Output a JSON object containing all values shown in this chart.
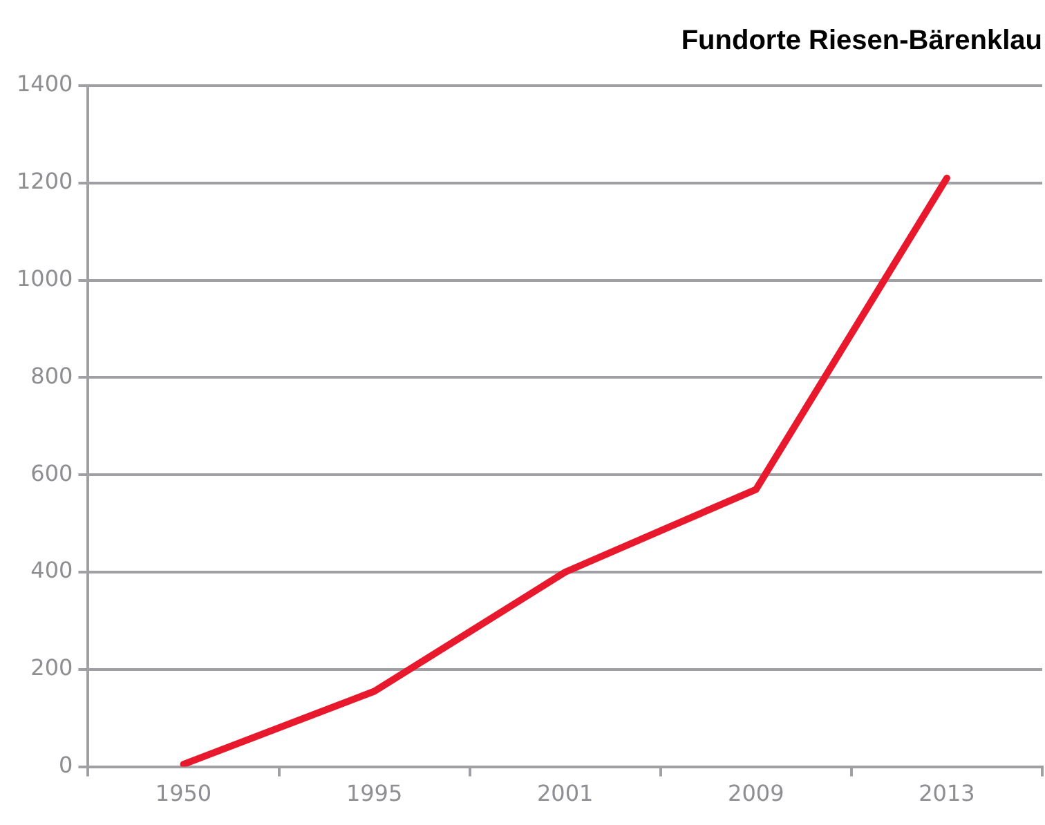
{
  "chart_data": {
    "type": "line",
    "title": "Fundorte Riesen-Bärenklau",
    "categories": [
      "1950",
      "1995",
      "2001",
      "2009",
      "2013"
    ],
    "series": [
      {
        "color": "#e8192c",
        "values": [
          5,
          155,
          400,
          570,
          1210
        ]
      }
    ],
    "ylim": [
      0,
      1400
    ],
    "yticks": [
      0,
      200,
      400,
      600,
      800,
      1000,
      1200,
      1400
    ],
    "grid": "y",
    "legend": false,
    "marker": "none",
    "line_style": "solid"
  }
}
